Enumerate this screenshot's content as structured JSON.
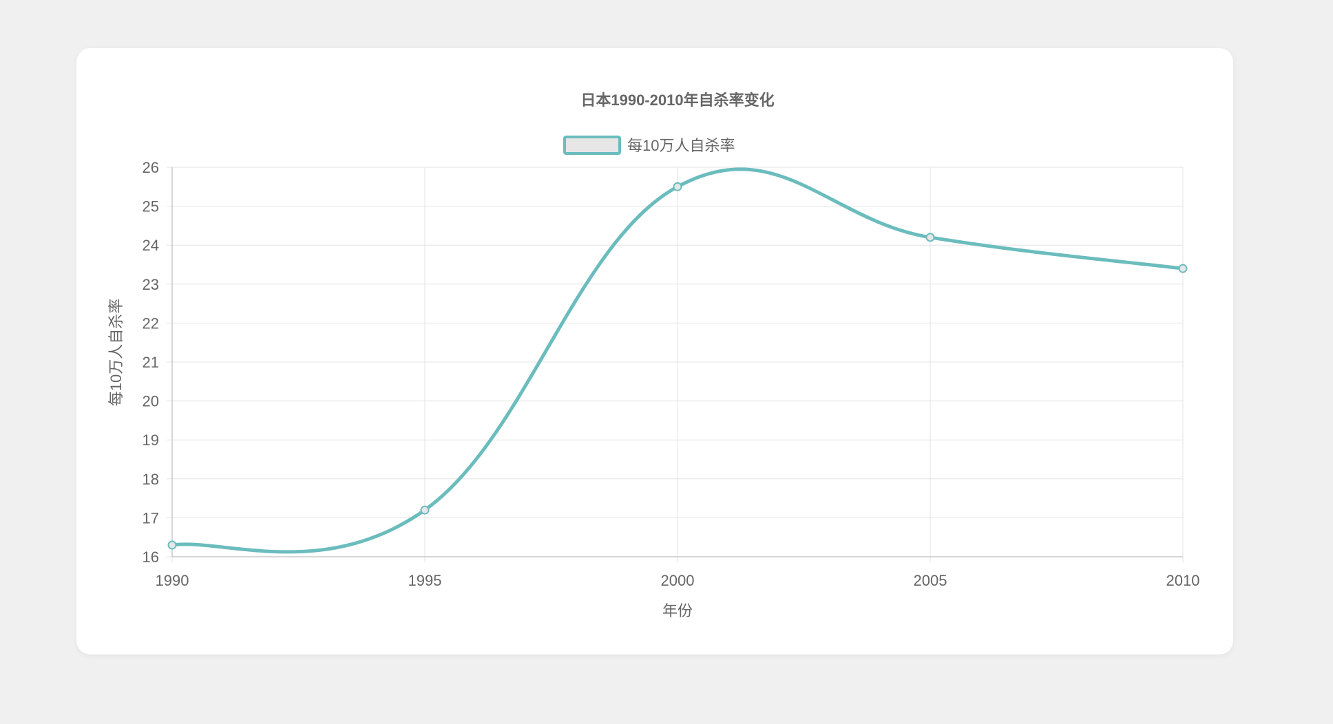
{
  "colors": {
    "page_bg": "#f0f0f0",
    "card_bg": "#ffffff",
    "line": "#6bbcbd",
    "legend_fill": "#e6e6e6",
    "grid": "#e3e3e3",
    "text": "#666666"
  },
  "chart_data": {
    "type": "line",
    "title": "日本1990-2010年自杀率变化",
    "xlabel": "年份",
    "ylabel": "每10万人自杀率",
    "categories": [
      "1990",
      "1995",
      "2000",
      "2005",
      "2010"
    ],
    "series": [
      {
        "name": "每10万人自杀率",
        "values": [
          16.3,
          17.2,
          25.5,
          24.2,
          23.4
        ]
      }
    ],
    "ylim": [
      16,
      26
    ],
    "yticks": [
      "16",
      "17",
      "18",
      "19",
      "20",
      "21",
      "22",
      "23",
      "24",
      "25",
      "26"
    ],
    "grid": true,
    "legend_position": "top",
    "line_style": "smooth"
  }
}
